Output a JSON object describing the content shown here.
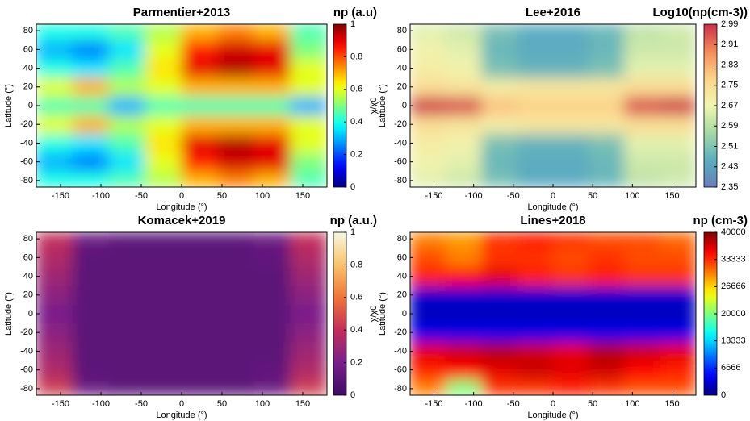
{
  "chart_data": [
    {
      "type": "heatmap",
      "title": "Parmentier+2013",
      "xlabel": "Longitude (°)",
      "ylabel": "Latitude (°)",
      "colorbar_title": "np (a.u)",
      "colorbar_label": "χ/χ0",
      "colormap": "jet",
      "x": [
        -157.5,
        -112.5,
        -67.5,
        -22.5,
        22.5,
        67.5,
        112.5,
        157.5
      ],
      "y": [
        -80,
        -60,
        -40,
        -20,
        0,
        20,
        40,
        60,
        80
      ],
      "z": [
        [
          0.4,
          0.4,
          0.45,
          0.55,
          0.7,
          0.75,
          0.7,
          0.45
        ],
        [
          0.3,
          0.25,
          0.35,
          0.6,
          0.85,
          0.92,
          0.9,
          0.5
        ],
        [
          0.4,
          0.35,
          0.45,
          0.65,
          0.9,
          0.95,
          0.9,
          0.6
        ],
        [
          0.6,
          0.7,
          0.55,
          0.6,
          0.7,
          0.7,
          0.7,
          0.6
        ],
        [
          0.45,
          0.45,
          0.3,
          0.45,
          0.45,
          0.45,
          0.45,
          0.3
        ],
        [
          0.6,
          0.7,
          0.55,
          0.6,
          0.7,
          0.7,
          0.7,
          0.6
        ],
        [
          0.4,
          0.35,
          0.45,
          0.65,
          0.9,
          0.95,
          0.9,
          0.6
        ],
        [
          0.3,
          0.25,
          0.35,
          0.6,
          0.85,
          0.92,
          0.9,
          0.5
        ],
        [
          0.4,
          0.4,
          0.45,
          0.55,
          0.7,
          0.75,
          0.7,
          0.45
        ]
      ],
      "xlim": [
        -180,
        180
      ],
      "ylim": [
        -87,
        87
      ],
      "xticks": [
        -150,
        -100,
        -50,
        0,
        50,
        100,
        150
      ],
      "yticks": [
        -80,
        -60,
        -40,
        -20,
        0,
        20,
        40,
        60,
        80
      ],
      "clim": [
        0,
        1
      ],
      "cticks": [
        0,
        0.2,
        0.4,
        0.6,
        0.8,
        1
      ]
    },
    {
      "type": "heatmap",
      "title": "Lee+2016",
      "xlabel": "Longitude (°)",
      "ylabel": "Latitude (°)",
      "colorbar_title": "Log10(np(cm-3))",
      "colormap": "spectral",
      "x": [
        -157.5,
        -112.5,
        -67.5,
        -22.5,
        22.5,
        67.5,
        112.5,
        157.5
      ],
      "y": [
        -80,
        -60,
        -40,
        -20,
        0,
        20,
        40,
        60,
        80
      ],
      "z": [
        [
          2.65,
          2.62,
          2.5,
          2.45,
          2.45,
          2.48,
          2.6,
          2.62
        ],
        [
          2.68,
          2.65,
          2.48,
          2.45,
          2.45,
          2.48,
          2.62,
          2.62
        ],
        [
          2.7,
          2.68,
          2.5,
          2.47,
          2.47,
          2.5,
          2.65,
          2.65
        ],
        [
          2.75,
          2.73,
          2.7,
          2.72,
          2.72,
          2.72,
          2.75,
          2.75
        ],
        [
          2.97,
          2.95,
          2.8,
          2.78,
          2.78,
          2.78,
          2.95,
          2.97
        ],
        [
          2.75,
          2.73,
          2.7,
          2.72,
          2.72,
          2.72,
          2.75,
          2.75
        ],
        [
          2.7,
          2.68,
          2.5,
          2.47,
          2.47,
          2.5,
          2.65,
          2.65
        ],
        [
          2.68,
          2.65,
          2.48,
          2.45,
          2.45,
          2.48,
          2.62,
          2.62
        ],
        [
          2.65,
          2.62,
          2.5,
          2.45,
          2.45,
          2.48,
          2.6,
          2.62
        ]
      ],
      "xlim": [
        -180,
        180
      ],
      "ylim": [
        -87,
        87
      ],
      "xticks": [
        -150,
        -100,
        -50,
        0,
        50,
        100,
        150
      ],
      "yticks": [
        -80,
        -60,
        -40,
        -20,
        0,
        20,
        40,
        60,
        80
      ],
      "clim": [
        2.35,
        2.99
      ],
      "cticks": [
        2.35,
        2.43,
        2.51,
        2.59,
        2.67,
        2.75,
        2.83,
        2.91,
        2.99
      ]
    },
    {
      "type": "heatmap",
      "title": "Komacek+2019",
      "xlabel": "Longitude (°)",
      "ylabel": "Latitude (°)",
      "colorbar_title": "np (a.u.)",
      "colorbar_label": "χ/χ0",
      "colormap": "magma",
      "x": [
        -157.5,
        -112.5,
        -67.5,
        -22.5,
        22.5,
        67.5,
        112.5,
        157.5
      ],
      "y": [
        -80,
        -60,
        -40,
        -20,
        0,
        20,
        40,
        60,
        80
      ],
      "z": [
        [
          0.45,
          0.15,
          0.1,
          0.1,
          0.1,
          0.1,
          0.15,
          0.45
        ],
        [
          0.35,
          0.1,
          0.1,
          0.1,
          0.1,
          0.1,
          0.12,
          0.35
        ],
        [
          0.3,
          0.1,
          0.1,
          0.1,
          0.1,
          0.1,
          0.1,
          0.3
        ],
        [
          0.25,
          0.1,
          0.1,
          0.1,
          0.1,
          0.1,
          0.1,
          0.25
        ],
        [
          0.2,
          0.1,
          0.1,
          0.1,
          0.1,
          0.1,
          0.1,
          0.2
        ],
        [
          0.25,
          0.1,
          0.1,
          0.1,
          0.1,
          0.1,
          0.1,
          0.25
        ],
        [
          0.3,
          0.1,
          0.1,
          0.1,
          0.1,
          0.1,
          0.1,
          0.3
        ],
        [
          0.35,
          0.1,
          0.1,
          0.1,
          0.1,
          0.1,
          0.12,
          0.35
        ],
        [
          0.4,
          0.15,
          0.1,
          0.1,
          0.1,
          0.1,
          0.15,
          0.4
        ]
      ],
      "xlim": [
        -180,
        180
      ],
      "ylim": [
        -87,
        87
      ],
      "xticks": [
        -150,
        -100,
        -50,
        0,
        50,
        100,
        150
      ],
      "yticks": [
        -80,
        -60,
        -40,
        -20,
        0,
        20,
        40,
        60,
        80
      ],
      "clim": [
        0,
        1
      ],
      "cticks": [
        0,
        0.2,
        0.4,
        0.6,
        0.8,
        1
      ]
    },
    {
      "type": "heatmap",
      "title": "Lines+2018",
      "xlabel": "Longitude (°)",
      "ylabel": "Latitude (°)",
      "colorbar_title": "np (cm-3)",
      "colormap": "jet",
      "x": [
        -157.5,
        -112.5,
        -67.5,
        -22.5,
        22.5,
        67.5,
        112.5,
        157.5
      ],
      "y": [
        -80,
        -60,
        -40,
        -20,
        0,
        20,
        40,
        60,
        80
      ],
      "z": [
        [
          30000,
          20000,
          33000,
          33000,
          34000,
          33000,
          32000,
          32000
        ],
        [
          34000,
          35000,
          36000,
          37000,
          36000,
          37000,
          35000,
          34000
        ],
        [
          36000,
          37000,
          38000,
          37000,
          36000,
          38000,
          37000,
          36000
        ],
        [
          4000,
          4000,
          4000,
          4000,
          4000,
          4000,
          4000,
          4000
        ],
        [
          2500,
          2500,
          2500,
          2500,
          2500,
          2500,
          2500,
          2500
        ],
        [
          3000,
          3000,
          3000,
          3000,
          3000,
          3000,
          3000,
          3000
        ],
        [
          34000,
          35000,
          36000,
          34000,
          33000,
          34000,
          33000,
          33000
        ],
        [
          32000,
          30000,
          33000,
          33000,
          32000,
          33000,
          32000,
          32000
        ],
        [
          30000,
          29000,
          33000,
          34000,
          33000,
          32000,
          32000,
          31000
        ]
      ],
      "xlim": [
        -180,
        180
      ],
      "ylim": [
        -87,
        87
      ],
      "xticks": [
        -150,
        -100,
        -50,
        0,
        50,
        100,
        150
      ],
      "yticks": [
        -80,
        -60,
        -40,
        -20,
        0,
        20,
        40,
        60,
        80
      ],
      "clim": [
        0,
        40000
      ],
      "cticks": [
        0,
        6666,
        13333,
        20000,
        26666,
        33333,
        40000
      ]
    }
  ]
}
